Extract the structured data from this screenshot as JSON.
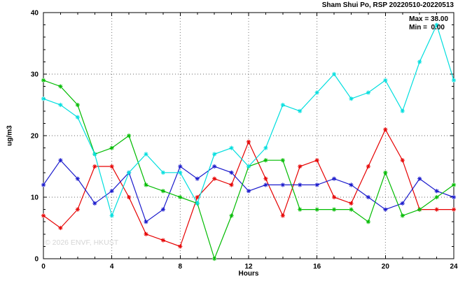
{
  "annotations": {
    "max_label": "Max = 38.00",
    "min_label": "Min =  0.00"
  },
  "watermark": "© 2026 ENVF, HKUST",
  "chart_data": {
    "type": "line",
    "title": "Sham Shui Po, RSP 20220510-20220513",
    "xlabel": "Hours",
    "ylabel": "ug/m3",
    "xlim": [
      0,
      24
    ],
    "ylim": [
      0,
      40
    ],
    "x_major_ticks": [
      0,
      4,
      8,
      12,
      16,
      20,
      24
    ],
    "y_major_ticks": [
      0,
      10,
      20,
      30,
      40
    ],
    "x_minor_step": 1,
    "y_minor_step": 2,
    "grid": "dotted-at-major-ticks",
    "legend": "none",
    "marker": "asterisk",
    "frame_color": "#000000",
    "grid_color": "#666666",
    "stats": {
      "max": 38.0,
      "min": 0.0
    },
    "x": [
      0,
      1,
      2,
      3,
      4,
      5,
      6,
      7,
      8,
      9,
      10,
      11,
      12,
      13,
      14,
      15,
      16,
      17,
      18,
      19,
      20,
      21,
      22,
      23,
      24
    ],
    "series": [
      {
        "name": "series-red",
        "color": "#e60000",
        "values": [
          7,
          5,
          8,
          15,
          15,
          10,
          4,
          3,
          2,
          10,
          13,
          12,
          19,
          13,
          7,
          15,
          16,
          10,
          9,
          15,
          21,
          16,
          8,
          8,
          8
        ]
      },
      {
        "name": "series-blue",
        "color": "#1a1acc",
        "values": [
          12,
          16,
          13,
          9,
          11,
          14,
          6,
          8,
          15,
          13,
          15,
          14,
          11,
          12,
          12,
          12,
          12,
          13,
          12,
          10,
          8,
          9,
          13,
          11,
          10
        ]
      },
      {
        "name": "series-green",
        "color": "#00bb00",
        "values": [
          29,
          28,
          25,
          17,
          18,
          20,
          12,
          11,
          10,
          9,
          0,
          7,
          15,
          16,
          16,
          8,
          8,
          8,
          8,
          6,
          14,
          7,
          8,
          10,
          12
        ]
      },
      {
        "name": "series-cyan",
        "color": "#00dede",
        "values": [
          26,
          25,
          23,
          17,
          7,
          14,
          17,
          14,
          14,
          9,
          17,
          18,
          15,
          18,
          25,
          24,
          27,
          30,
          26,
          27,
          29,
          24,
          32,
          38,
          29
        ]
      }
    ]
  }
}
